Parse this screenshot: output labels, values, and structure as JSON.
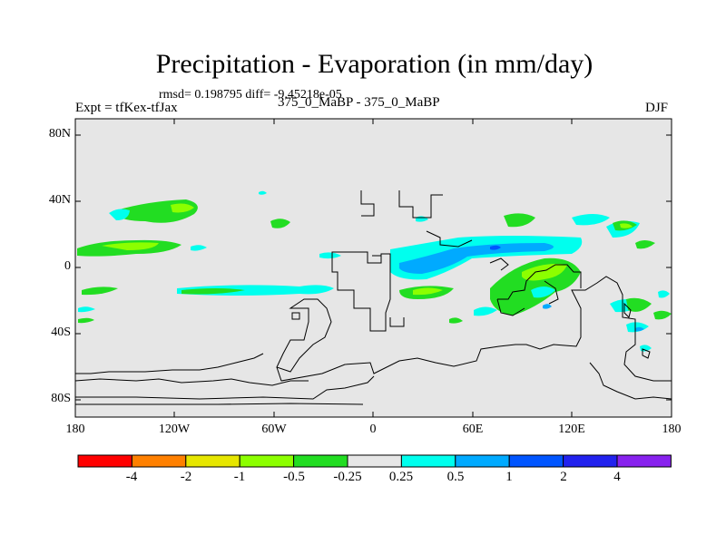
{
  "title": "Precipitation - Evaporation (in mm/day)",
  "stats": "rmsd= 0.198795 diff= -9.45218e-05",
  "left_label": "Expt = tfKex-tfJax",
  "center_label": "375_0_MaBP - 375_0_MaBP",
  "right_label": "DJF",
  "y_ticks": [
    "80N",
    "40N",
    "0",
    "40S",
    "80S"
  ],
  "x_ticks": [
    "180",
    "120W",
    "60W",
    "0",
    "60E",
    "120E",
    "180"
  ],
  "colorbar": {
    "labels": [
      "-4",
      "-2",
      "-1",
      "-0.5",
      "-0.25",
      "0.25",
      "0.5",
      "1",
      "2",
      "4"
    ],
    "colors": [
      "#ff0000",
      "#ff8000",
      "#e6e600",
      "#8cff00",
      "#22dd22",
      "#e6e6e6",
      "#00ffee",
      "#00aaff",
      "#0055ff",
      "#2222ee",
      "#8822ee"
    ]
  },
  "map": {
    "lon_range": [
      -180,
      180
    ],
    "lat_range": [
      -90,
      90
    ],
    "background_color": "#e6e6e6"
  }
}
